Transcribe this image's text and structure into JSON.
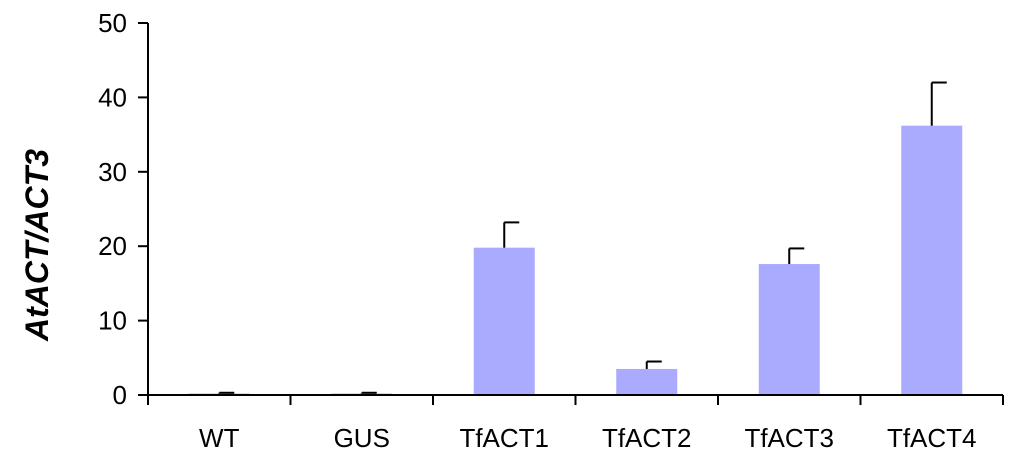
{
  "chart_data": {
    "type": "bar",
    "categories": [
      "WT",
      "GUS",
      "TfACT1",
      "TfACT2",
      "TfACT3",
      "TfACT4"
    ],
    "values": [
      0.2,
      0.2,
      19.8,
      3.5,
      17.6,
      36.2
    ],
    "error": [
      0.1,
      0.1,
      3.4,
      1.0,
      2.1,
      5.8
    ],
    "title": "",
    "xlabel": "",
    "ylabel": "AtACT/ACT3",
    "ylim": [
      0,
      50
    ],
    "yticks": [
      "0",
      "10",
      "20",
      "30",
      "40",
      "50"
    ],
    "grid": false,
    "bar_color": "#aaaaff"
  }
}
